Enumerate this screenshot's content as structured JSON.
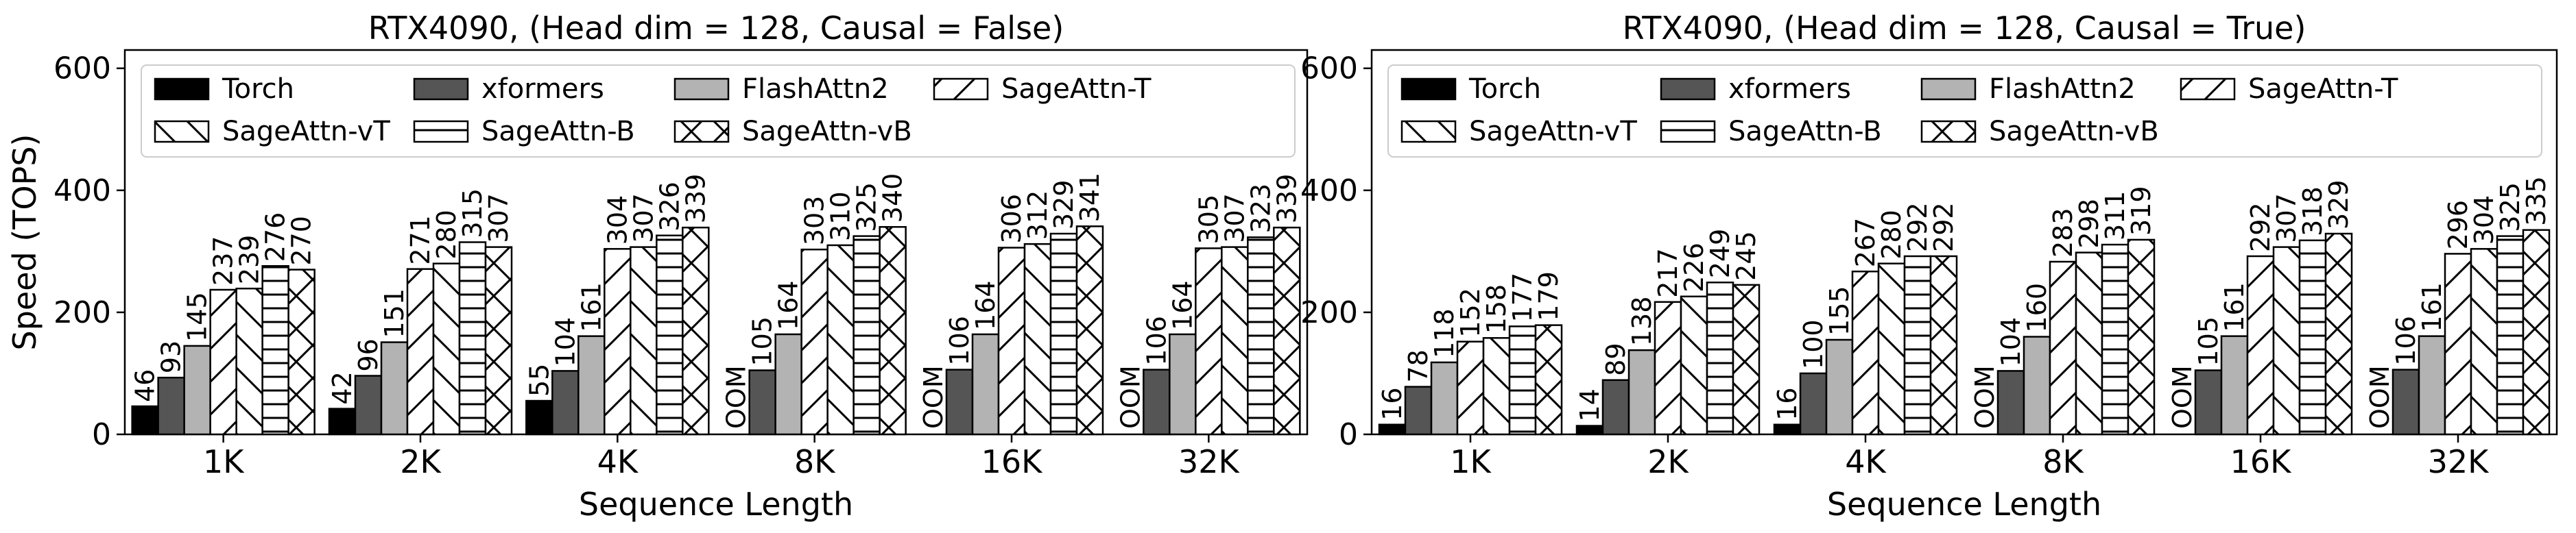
{
  "figure": {
    "ylabel": "Speed (TOPS)",
    "xlabel": "Sequence Length"
  },
  "legend_order": [
    "Torch",
    "xformers",
    "FlashAttn2",
    "SageAttn-T",
    "SageAttn-vT",
    "SageAttn-B",
    "SageAttn-vB"
  ],
  "series_style": {
    "Torch": {
      "fill": "#000000",
      "hatch": "none"
    },
    "xformers": {
      "fill": "#555555",
      "hatch": "none"
    },
    "FlashAttn2": {
      "fill": "#b3b3b3",
      "hatch": "none"
    },
    "SageAttn-T": {
      "fill": "#ffffff",
      "hatch": "slash"
    },
    "SageAttn-vT": {
      "fill": "#ffffff",
      "hatch": "backslash"
    },
    "SageAttn-B": {
      "fill": "#ffffff",
      "hatch": "horizontal"
    },
    "SageAttn-vB": {
      "fill": "#ffffff",
      "hatch": "cross"
    }
  },
  "oom_label": "OOM",
  "chart_data": [
    {
      "type": "bar",
      "title": "RTX4090, (Head dim = 128, Causal = False)",
      "xlabel": "Sequence Length",
      "ylabel": "Speed (TOPS)",
      "ylim": [
        0,
        630
      ],
      "yticks": [
        0,
        200,
        400,
        600
      ],
      "grid": false,
      "legend": "top, 4 columns",
      "categories": [
        "1K",
        "2K",
        "4K",
        "8K",
        "16K",
        "32K"
      ],
      "series": [
        {
          "name": "Torch",
          "values": [
            46,
            42,
            55,
            null,
            null,
            null
          ]
        },
        {
          "name": "xformers",
          "values": [
            93,
            96,
            104,
            105,
            106,
            106
          ]
        },
        {
          "name": "FlashAttn2",
          "values": [
            145,
            151,
            161,
            164,
            164,
            164
          ]
        },
        {
          "name": "SageAttn-T",
          "values": [
            237,
            271,
            304,
            303,
            306,
            305
          ]
        },
        {
          "name": "SageAttn-vT",
          "values": [
            239,
            280,
            307,
            310,
            312,
            307
          ]
        },
        {
          "name": "SageAttn-B",
          "values": [
            276,
            315,
            326,
            325,
            329,
            323
          ]
        },
        {
          "name": "SageAttn-vB",
          "values": [
            270,
            307,
            339,
            340,
            341,
            339
          ]
        }
      ]
    },
    {
      "type": "bar",
      "title": "RTX4090, (Head dim = 128, Causal = True)",
      "xlabel": "Sequence Length",
      "ylabel": "",
      "ylim": [
        0,
        630
      ],
      "yticks": [
        0,
        200,
        400,
        600
      ],
      "grid": false,
      "legend": "top, 4 columns",
      "categories": [
        "1K",
        "2K",
        "4K",
        "8K",
        "16K",
        "32K"
      ],
      "series": [
        {
          "name": "Torch",
          "values": [
            16,
            14,
            16,
            null,
            null,
            null
          ]
        },
        {
          "name": "xformers",
          "values": [
            78,
            89,
            100,
            104,
            105,
            106
          ]
        },
        {
          "name": "FlashAttn2",
          "values": [
            118,
            138,
            155,
            160,
            161,
            161
          ]
        },
        {
          "name": "SageAttn-T",
          "values": [
            152,
            217,
            267,
            283,
            292,
            296
          ]
        },
        {
          "name": "SageAttn-vT",
          "values": [
            158,
            226,
            280,
            298,
            307,
            304
          ]
        },
        {
          "name": "SageAttn-B",
          "values": [
            177,
            249,
            292,
            311,
            318,
            325
          ]
        },
        {
          "name": "SageAttn-vB",
          "values": [
            179,
            245,
            292,
            319,
            329,
            335
          ]
        }
      ]
    }
  ]
}
